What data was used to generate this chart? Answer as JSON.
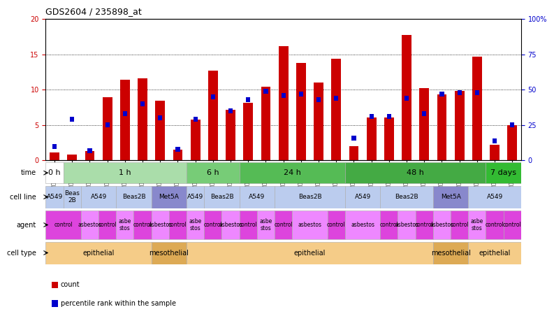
{
  "title": "GDS2604 / 235898_at",
  "samples": [
    "GSM139646",
    "GSM139660",
    "GSM139640",
    "GSM139647",
    "GSM139654",
    "GSM139661",
    "GSM139760",
    "GSM139669",
    "GSM139641",
    "GSM139648",
    "GSM139655",
    "GSM139663",
    "GSM139643",
    "GSM139653",
    "GSM139656",
    "GSM139657",
    "GSM139664",
    "GSM139644",
    "GSM139645",
    "GSM139652",
    "GSM139659",
    "GSM139666",
    "GSM139667",
    "GSM139668",
    "GSM139761",
    "GSM139642",
    "GSM139649"
  ],
  "count_values": [
    1.1,
    0.8,
    1.3,
    9.0,
    11.4,
    11.6,
    8.5,
    1.5,
    5.8,
    12.7,
    7.2,
    8.2,
    10.4,
    16.2,
    13.8,
    11.0,
    14.4,
    2.0,
    6.1,
    6.1,
    17.8,
    10.2,
    9.3,
    9.8,
    14.7,
    2.2,
    5.0
  ],
  "percentile_values": [
    10.0,
    29.0,
    7.0,
    25.0,
    33.0,
    40.0,
    30.0,
    8.0,
    29.0,
    45.0,
    35.0,
    43.0,
    49.0,
    46.0,
    47.0,
    43.0,
    44.0,
    16.0,
    31.0,
    31.0,
    44.0,
    33.0,
    47.0,
    48.0,
    48.0,
    14.0,
    25.0
  ],
  "ylim_left": [
    0,
    20
  ],
  "ylim_right": [
    0,
    100
  ],
  "yticks_left": [
    0,
    5,
    10,
    15,
    20
  ],
  "yticks_right": [
    0,
    25,
    50,
    75,
    100
  ],
  "bar_color": "#cc0000",
  "pct_color": "#0000cc",
  "time_groups": [
    {
      "label": "0 h",
      "start": 0,
      "end": 1,
      "color": "#ffffff"
    },
    {
      "label": "1 h",
      "start": 1,
      "end": 8,
      "color": "#aaddaa"
    },
    {
      "label": "6 h",
      "start": 8,
      "end": 11,
      "color": "#77cc77"
    },
    {
      "label": "24 h",
      "start": 11,
      "end": 17,
      "color": "#55bb55"
    },
    {
      "label": "48 h",
      "start": 17,
      "end": 25,
      "color": "#44aa44"
    },
    {
      "label": "7 days",
      "start": 25,
      "end": 27,
      "color": "#33bb33"
    }
  ],
  "cell_line_groups": [
    {
      "label": "A549",
      "start": 0,
      "end": 1,
      "color": "#bbccee"
    },
    {
      "label": "Beas\n2B",
      "start": 1,
      "end": 2,
      "color": "#bbccee"
    },
    {
      "label": "A549",
      "start": 2,
      "end": 4,
      "color": "#bbccee"
    },
    {
      "label": "Beas2B",
      "start": 4,
      "end": 6,
      "color": "#bbccee"
    },
    {
      "label": "Met5A",
      "start": 6,
      "end": 8,
      "color": "#8888cc"
    },
    {
      "label": "A549",
      "start": 8,
      "end": 9,
      "color": "#bbccee"
    },
    {
      "label": "Beas2B",
      "start": 9,
      "end": 11,
      "color": "#bbccee"
    },
    {
      "label": "A549",
      "start": 11,
      "end": 13,
      "color": "#bbccee"
    },
    {
      "label": "Beas2B",
      "start": 13,
      "end": 17,
      "color": "#bbccee"
    },
    {
      "label": "A549",
      "start": 17,
      "end": 19,
      "color": "#bbccee"
    },
    {
      "label": "Beas2B",
      "start": 19,
      "end": 22,
      "color": "#bbccee"
    },
    {
      "label": "Met5A",
      "start": 22,
      "end": 24,
      "color": "#8888cc"
    },
    {
      "label": "A549",
      "start": 24,
      "end": 27,
      "color": "#bbccee"
    }
  ],
  "agent_groups": [
    {
      "label": "control",
      "start": 0,
      "end": 2,
      "color": "#dd44dd"
    },
    {
      "label": "asbestos",
      "start": 2,
      "end": 3,
      "color": "#ee88ff"
    },
    {
      "label": "control",
      "start": 3,
      "end": 4,
      "color": "#dd44dd"
    },
    {
      "label": "asbe\nstos",
      "start": 4,
      "end": 5,
      "color": "#ee88ff"
    },
    {
      "label": "control",
      "start": 5,
      "end": 6,
      "color": "#dd44dd"
    },
    {
      "label": "asbestos",
      "start": 6,
      "end": 7,
      "color": "#ee88ff"
    },
    {
      "label": "control",
      "start": 7,
      "end": 8,
      "color": "#dd44dd"
    },
    {
      "label": "asbe\nstos",
      "start": 8,
      "end": 9,
      "color": "#ee88ff"
    },
    {
      "label": "control",
      "start": 9,
      "end": 10,
      "color": "#dd44dd"
    },
    {
      "label": "asbestos",
      "start": 10,
      "end": 11,
      "color": "#ee88ff"
    },
    {
      "label": "control",
      "start": 11,
      "end": 12,
      "color": "#dd44dd"
    },
    {
      "label": "asbe\nstos",
      "start": 12,
      "end": 13,
      "color": "#ee88ff"
    },
    {
      "label": "control",
      "start": 13,
      "end": 14,
      "color": "#dd44dd"
    },
    {
      "label": "asbestos",
      "start": 14,
      "end": 16,
      "color": "#ee88ff"
    },
    {
      "label": "control",
      "start": 16,
      "end": 17,
      "color": "#dd44dd"
    },
    {
      "label": "asbestos",
      "start": 17,
      "end": 19,
      "color": "#ee88ff"
    },
    {
      "label": "control",
      "start": 19,
      "end": 20,
      "color": "#dd44dd"
    },
    {
      "label": "asbestos",
      "start": 20,
      "end": 21,
      "color": "#ee88ff"
    },
    {
      "label": "control",
      "start": 21,
      "end": 22,
      "color": "#dd44dd"
    },
    {
      "label": "asbestos",
      "start": 22,
      "end": 23,
      "color": "#ee88ff"
    },
    {
      "label": "control",
      "start": 23,
      "end": 24,
      "color": "#dd44dd"
    },
    {
      "label": "asbe\nstos",
      "start": 24,
      "end": 25,
      "color": "#ee88ff"
    },
    {
      "label": "control",
      "start": 25,
      "end": 26,
      "color": "#dd44dd"
    },
    {
      "label": "control",
      "start": 26,
      "end": 27,
      "color": "#dd44dd"
    }
  ],
  "cell_type_groups": [
    {
      "label": "epithelial",
      "start": 0,
      "end": 6,
      "color": "#f5cc88"
    },
    {
      "label": "mesothelial",
      "start": 6,
      "end": 8,
      "color": "#ddaa55"
    },
    {
      "label": "epithelial",
      "start": 8,
      "end": 22,
      "color": "#f5cc88"
    },
    {
      "label": "mesothelial",
      "start": 22,
      "end": 24,
      "color": "#ddaa55"
    },
    {
      "label": "epithelial",
      "start": 24,
      "end": 27,
      "color": "#f5cc88"
    }
  ],
  "legend_count_label": "count",
  "legend_pct_label": "percentile rank within the sample",
  "bg_color": "#ffffff",
  "grid_color": "#000000",
  "tick_label_color_left": "#cc0000",
  "tick_label_color_right": "#0000cc"
}
